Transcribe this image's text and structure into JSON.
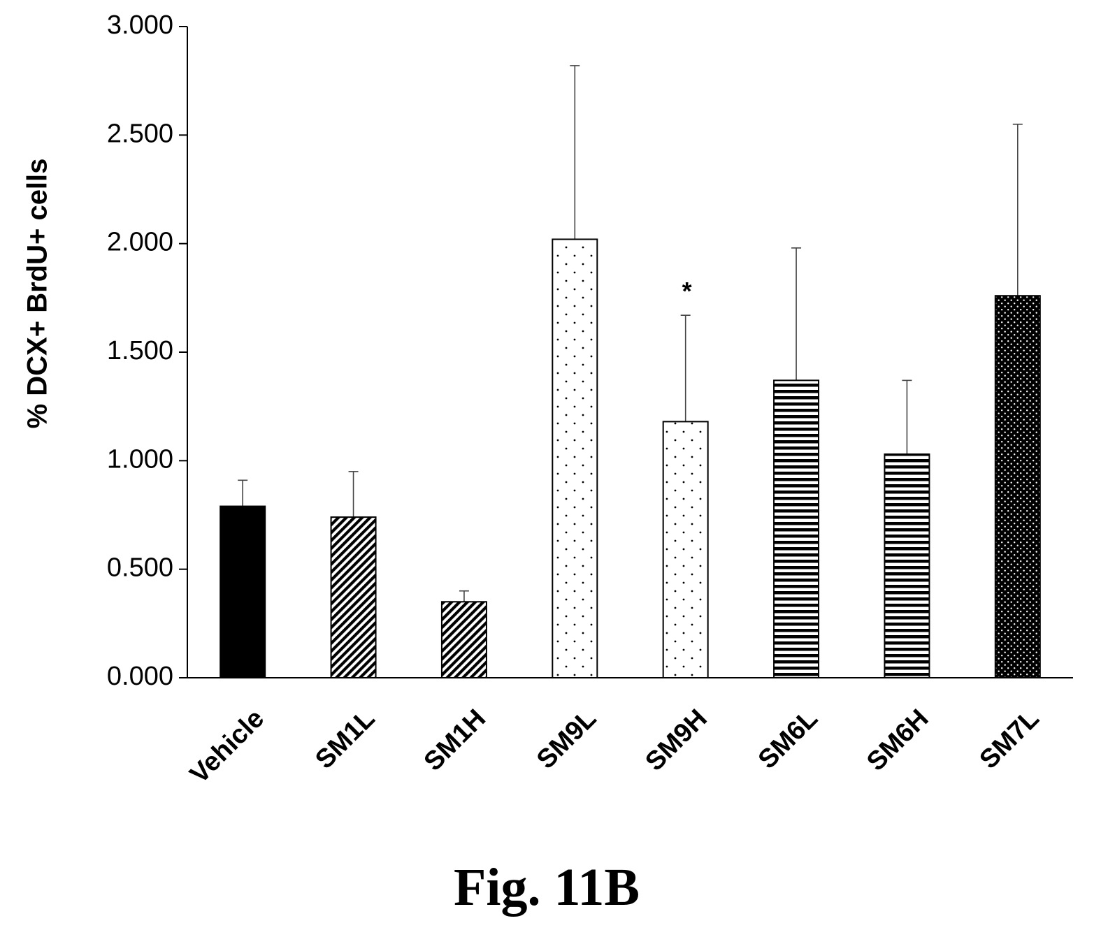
{
  "chart_data": {
    "type": "bar",
    "title": "",
    "xlabel": "",
    "ylabel": "% DCX+ BrdU+ cells",
    "ylim": [
      0,
      3
    ],
    "y_ticks": [
      "0.000",
      "0.500",
      "1.000",
      "1.500",
      "2.000",
      "2.500",
      "3.000"
    ],
    "categories": [
      "Vehicle",
      "SM1L",
      "SM1H",
      "SM9L",
      "SM9H",
      "SM6L",
      "SM6H",
      "SM7L"
    ],
    "values": [
      0.79,
      0.74,
      0.35,
      2.02,
      1.18,
      1.37,
      1.03,
      1.76
    ],
    "error_upper": [
      0.12,
      0.21,
      0.05,
      0.8,
      0.49,
      0.61,
      0.34,
      0.79
    ],
    "bar_patterns": [
      "solid-black",
      "diagonal-dense",
      "diagonal-dense",
      "sparse-dots",
      "sparse-dots",
      "horizontal-stripes",
      "horizontal-stripes",
      "dense-dots-dark"
    ],
    "annotations": [
      {
        "category": "SM9H",
        "text": "*"
      }
    ],
    "grid": false,
    "legend": "none"
  },
  "caption": "Fig. 11B"
}
